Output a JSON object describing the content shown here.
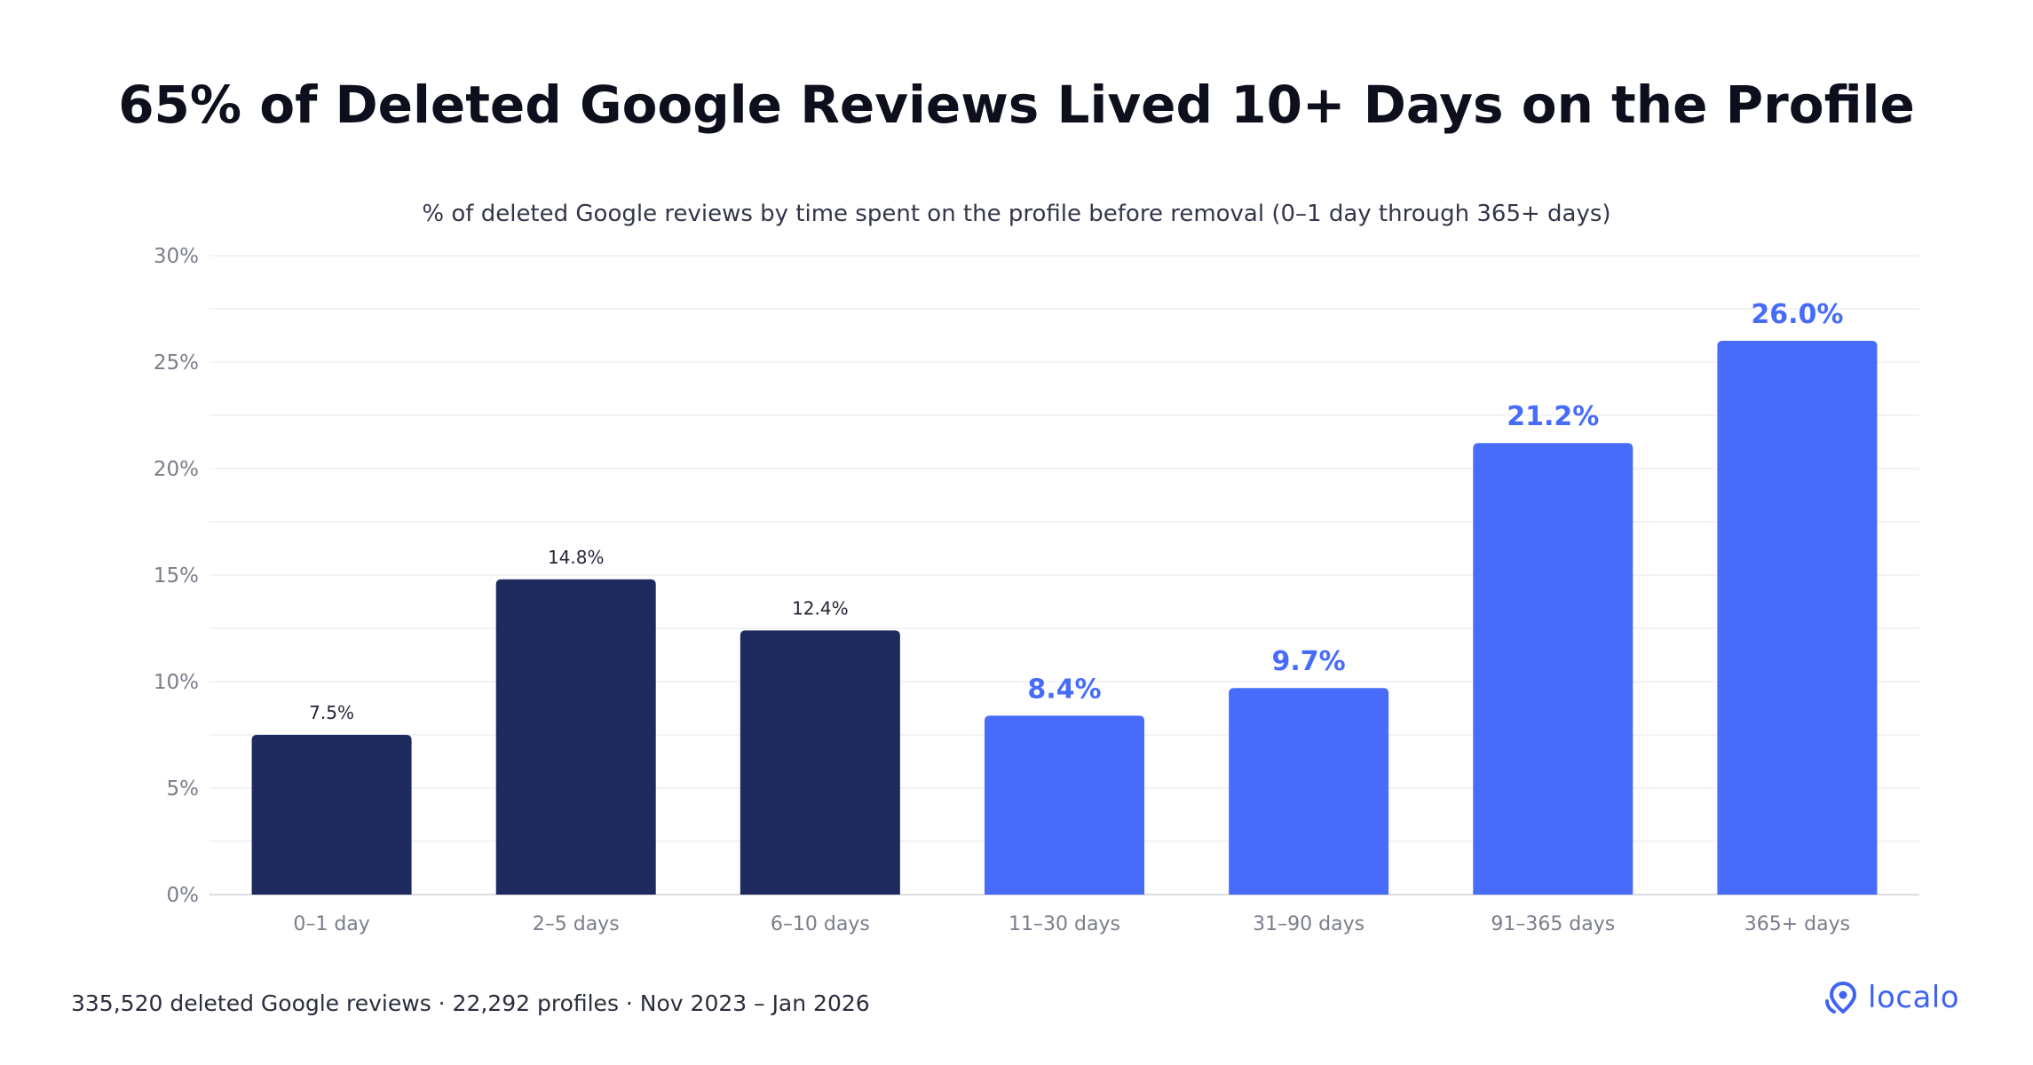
{
  "header": {
    "title": "65% of Deleted Google Reviews Lived 10+ Days on the Profile",
    "subtitle": "% of deleted Google reviews by time spent on the profile before removal (0–1 day through 365+ days)"
  },
  "footer": {
    "note": "335,520 deleted Google reviews · 22,292 profiles · Nov 2023 – Jan 2026",
    "logo_text": "localo",
    "logo_icon": "location-pin-icon"
  },
  "colors": {
    "dark": "#1e2a5e",
    "accent": "#476cfa",
    "grid": "#eeeff3",
    "tick_text": "#7a7d8c",
    "dark_label": "#24263a"
  },
  "chart_data": {
    "type": "bar",
    "title": "65% of Deleted Google Reviews Lived 10+ Days on the Profile",
    "subtitle": "% of deleted Google reviews by time spent on the profile before removal (0–1 day through 365+ days)",
    "xlabel": "",
    "ylabel": "",
    "categories": [
      "0–1 day",
      "2–5 days",
      "6–10 days",
      "11–30 days",
      "31–90 days",
      "91–365 days",
      "365+ days"
    ],
    "values": [
      7.5,
      14.8,
      12.4,
      8.4,
      9.7,
      21.2,
      26.0
    ],
    "value_labels": [
      "7.5%",
      "14.8%",
      "12.4%",
      "8.4%",
      "9.7%",
      "21.2%",
      "26.0%"
    ],
    "highlighted": [
      false,
      false,
      false,
      true,
      true,
      true,
      true
    ],
    "ylim": [
      0,
      30
    ],
    "yticks": [
      0,
      5,
      10,
      15,
      20,
      25,
      30
    ],
    "ytick_labels": [
      "0%",
      "5%",
      "10%",
      "15%",
      "20%",
      "25%",
      "30%"
    ],
    "grid": true,
    "legend": "none"
  }
}
